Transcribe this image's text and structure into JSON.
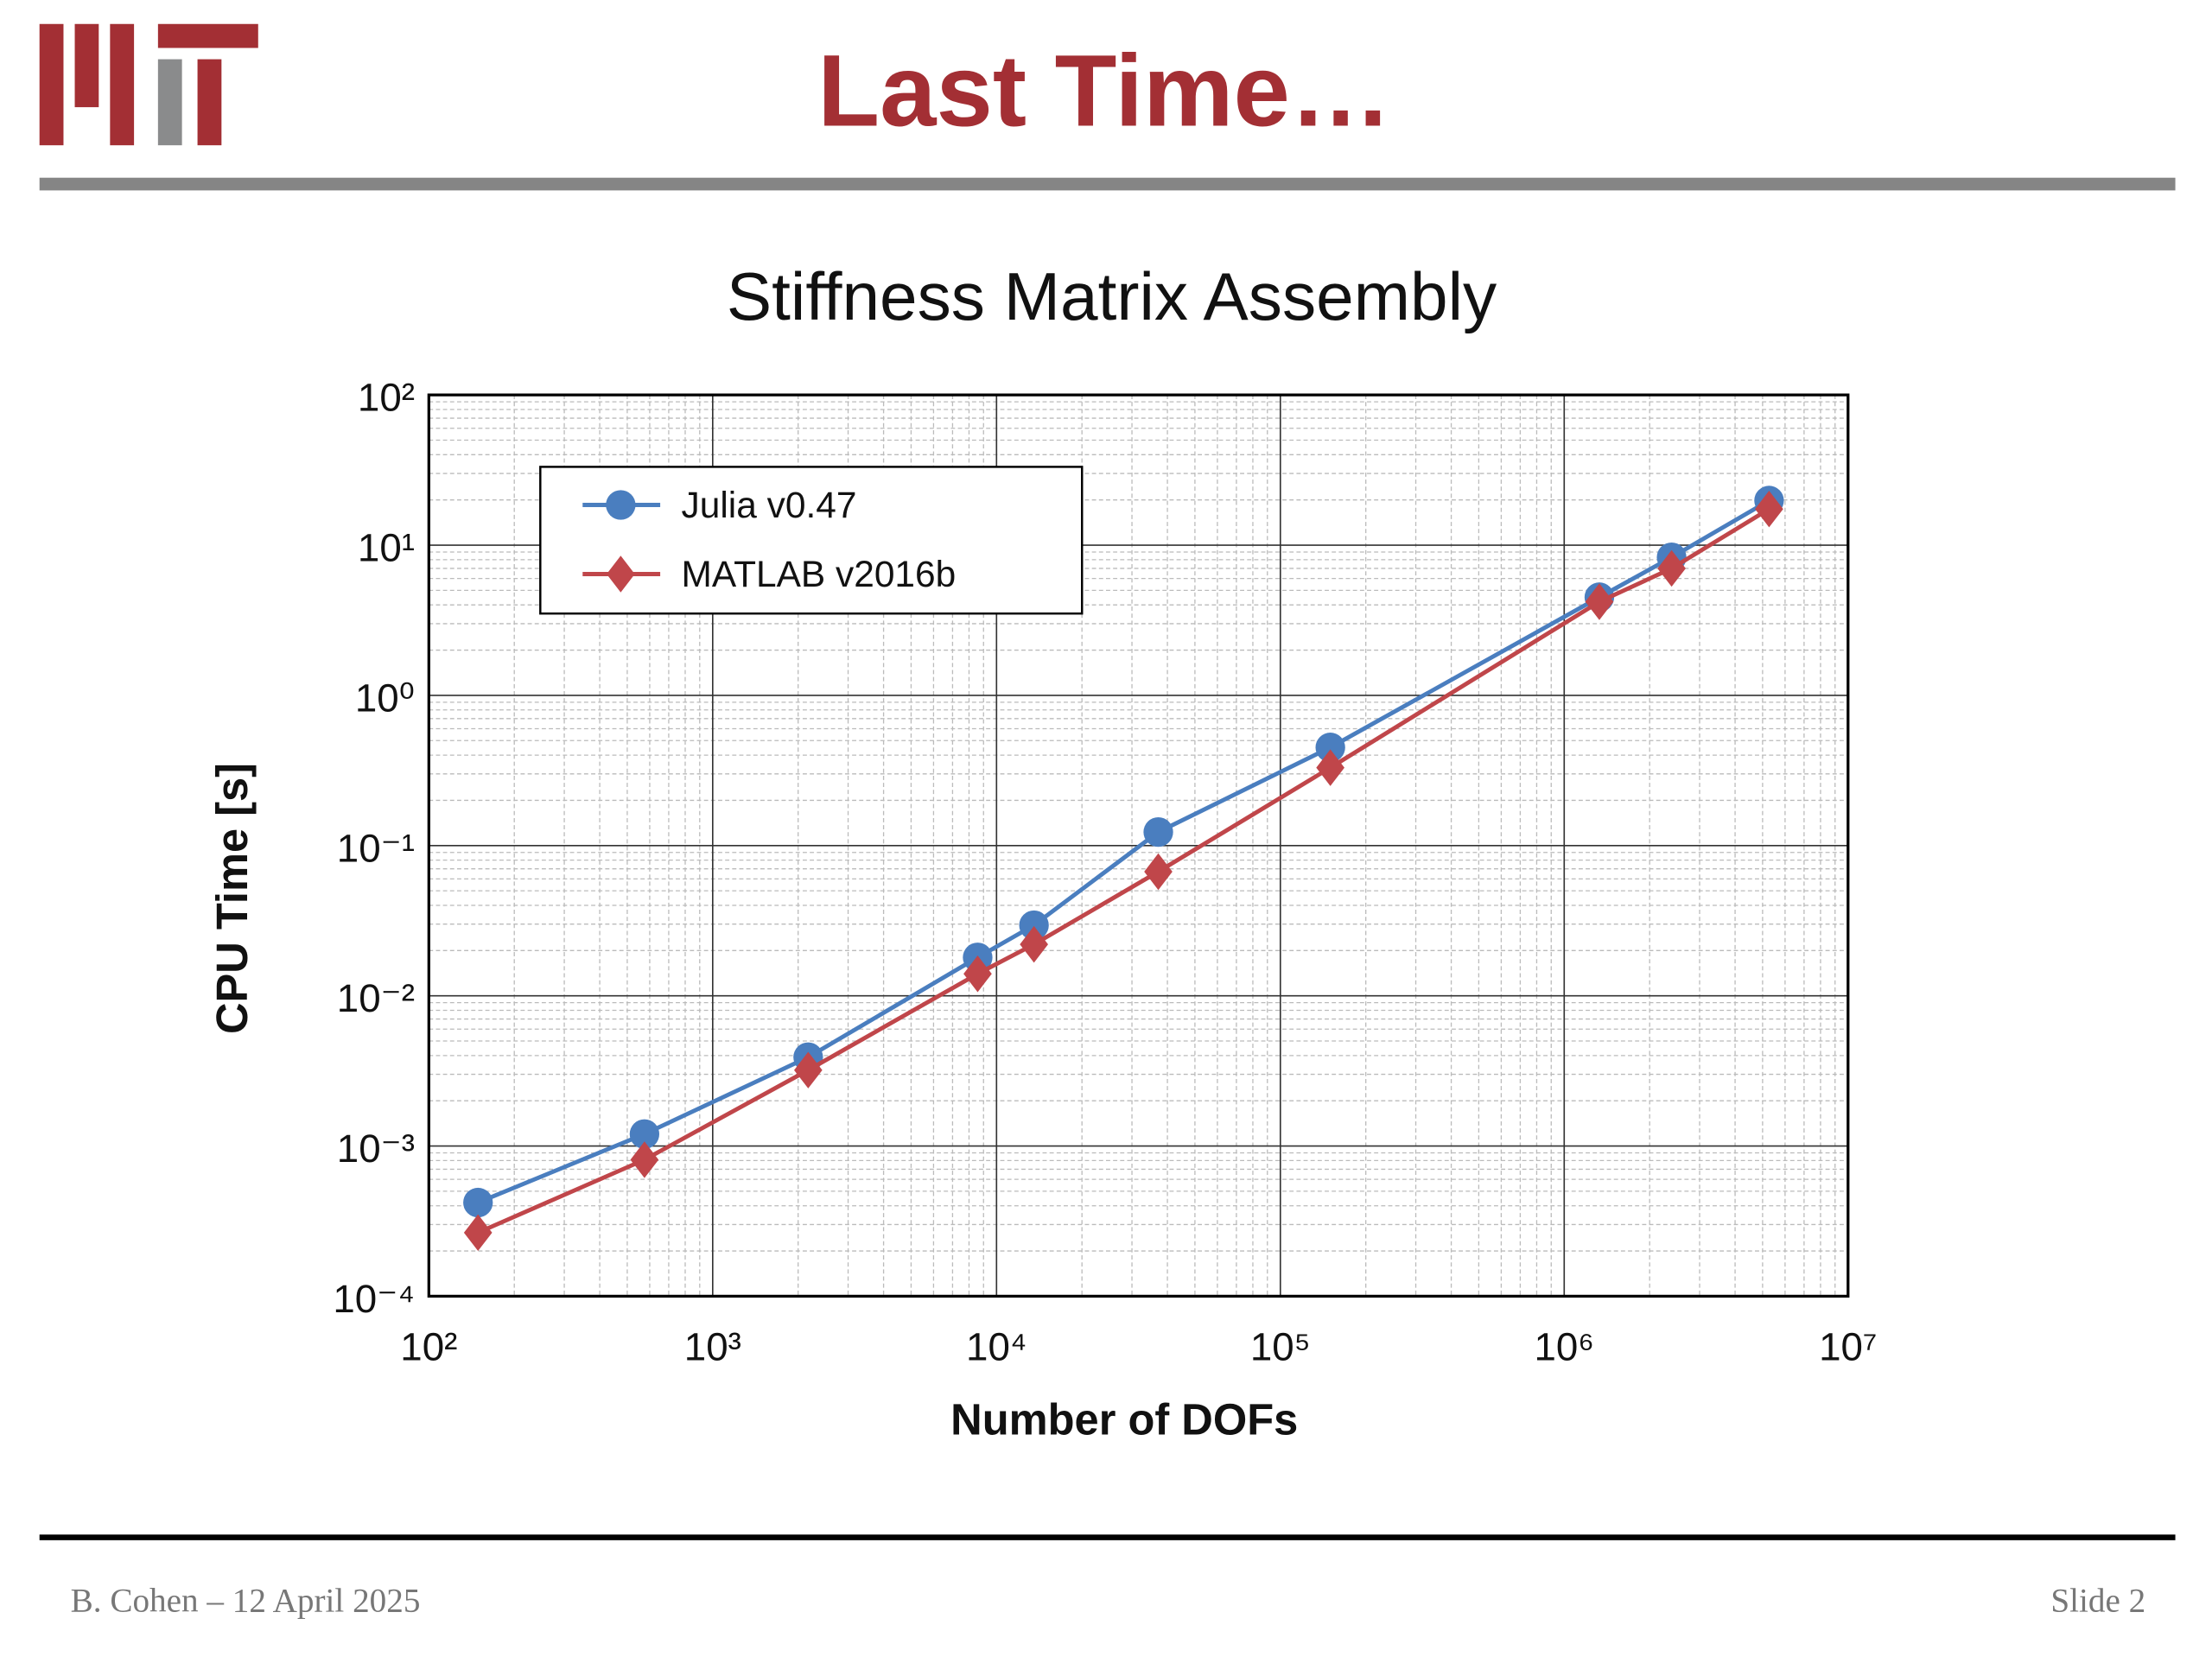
{
  "header": {
    "title": "Last Time…"
  },
  "footer": {
    "left": "B. Cohen – 12 April 2025",
    "right": "Slide 2"
  },
  "chart_data": {
    "type": "line",
    "title": "Stiffness Matrix Assembly",
    "xlabel": "Number of DOFs",
    "ylabel": "CPU Time [s]",
    "x": [
      149,
      575,
      2170,
      8580,
      13550,
      37150,
      150000,
      1330000,
      2390000,
      5270000
    ],
    "series": [
      {
        "name": "Julia v0.47",
        "color": "#4a7ebf",
        "marker": "circle",
        "values": [
          0.00042,
          0.0012,
          0.0039,
          0.018,
          0.0295,
          0.123,
          0.45,
          4.5,
          8.3,
          19.8
        ]
      },
      {
        "name": "MATLAB v2016b",
        "color": "#c0464a",
        "marker": "diamond",
        "values": [
          0.000265,
          0.00081,
          0.0032,
          0.014,
          0.022,
          0.067,
          0.33,
          4.2,
          7.0,
          17.4
        ]
      }
    ],
    "xlim": [
      100,
      10000000
    ],
    "ylim": [
      0.0001,
      100
    ],
    "xscale": "log",
    "yscale": "log",
    "grid": true,
    "minor_grid": true,
    "legend": "upper left",
    "xticks": [
      {
        "value": 100,
        "label": "10²"
      },
      {
        "value": 1000,
        "label": "10³"
      },
      {
        "value": 10000,
        "label": "10⁴"
      },
      {
        "value": 100000,
        "label": "10⁵"
      },
      {
        "value": 1000000,
        "label": "10⁶"
      },
      {
        "value": 10000000,
        "label": "10⁷"
      }
    ],
    "yticks": [
      {
        "value": 0.0001,
        "label": "10⁻⁴"
      },
      {
        "value": 0.001,
        "label": "10⁻³"
      },
      {
        "value": 0.01,
        "label": "10⁻²"
      },
      {
        "value": 0.1,
        "label": "10⁻¹"
      },
      {
        "value": 1,
        "label": "10⁰"
      },
      {
        "value": 10,
        "label": "10¹"
      },
      {
        "value": 100,
        "label": "10²"
      }
    ]
  }
}
